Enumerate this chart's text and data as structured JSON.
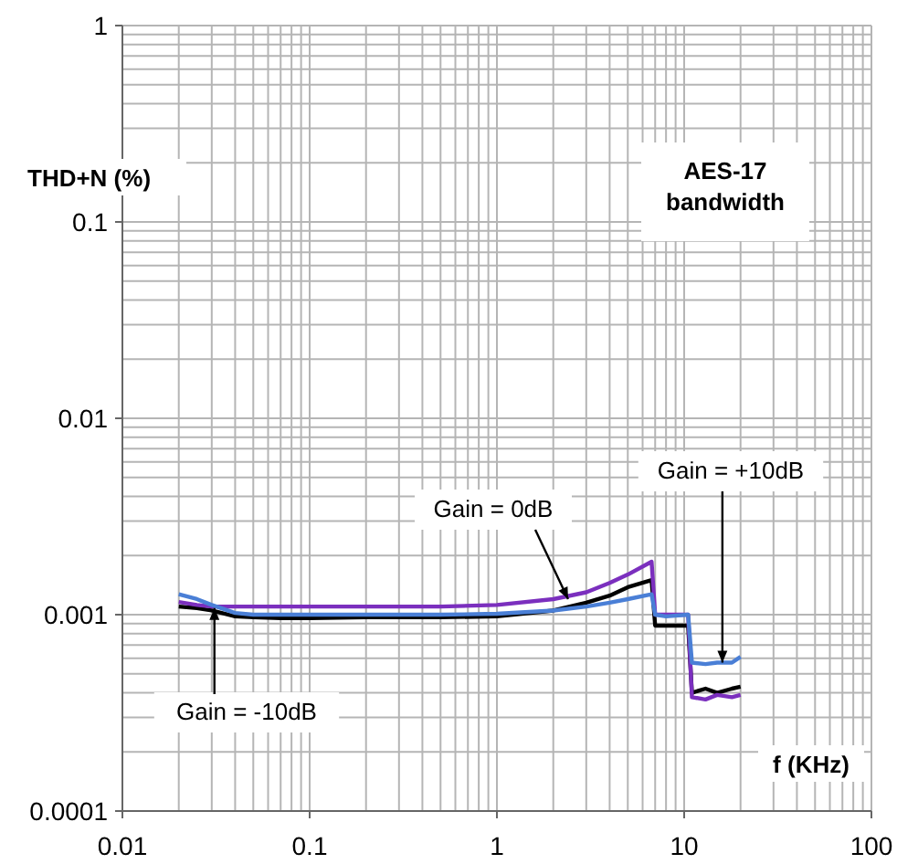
{
  "chart_data": {
    "type": "line",
    "xlabel": "f (KHz)",
    "ylabel": "THD+N (%)",
    "log": "xy",
    "grid": true,
    "marker": "none",
    "line_style": "solid",
    "xlim": [
      0.01,
      100
    ],
    "xticks": [
      0.01,
      0.1,
      1,
      10,
      100
    ],
    "ylim": [
      0.0001,
      1
    ],
    "yticks": [
      0.0001,
      0.001,
      0.01,
      0.1,
      1
    ],
    "series": [
      {
        "color": "#000000",
        "x": [
          0.02,
          0.025,
          0.03,
          0.04,
          0.05,
          0.07,
          0.1,
          0.2,
          0.5,
          1,
          2,
          3,
          4,
          5,
          6.7,
          7,
          8,
          10.5,
          11,
          13,
          15,
          18,
          20
        ],
        "values": [
          0.0011,
          0.00108,
          0.00105,
          0.00098,
          0.00097,
          0.00096,
          0.00096,
          0.00097,
          0.00097,
          0.00098,
          0.00105,
          0.00115,
          0.00125,
          0.00138,
          0.0015,
          0.00088,
          0.00088,
          0.00088,
          0.0004,
          0.00042,
          0.0004,
          0.00042,
          0.00043
        ]
      },
      {
        "color": "#7b2fbe",
        "x": [
          0.02,
          0.025,
          0.03,
          0.04,
          0.05,
          0.07,
          0.1,
          0.2,
          0.5,
          1,
          2,
          3,
          4,
          5,
          6.7,
          7,
          8,
          10.5,
          11,
          13,
          15,
          18,
          20
        ],
        "values": [
          0.00116,
          0.00112,
          0.0011,
          0.0011,
          0.0011,
          0.0011,
          0.0011,
          0.0011,
          0.0011,
          0.00112,
          0.0012,
          0.0013,
          0.00145,
          0.0016,
          0.00186,
          0.001,
          0.001,
          0.001,
          0.00038,
          0.00037,
          0.00039,
          0.00038,
          0.00039
        ]
      },
      {
        "color": "#4a7fd6",
        "x": [
          0.02,
          0.025,
          0.03,
          0.04,
          0.05,
          0.07,
          0.1,
          0.2,
          0.5,
          1,
          2,
          3,
          4,
          5,
          6.7,
          7,
          8,
          10.5,
          11,
          13,
          15,
          18,
          20
        ],
        "values": [
          0.00127,
          0.0012,
          0.00112,
          0.00102,
          0.001,
          0.001,
          0.001,
          0.001,
          0.001,
          0.00101,
          0.00105,
          0.0011,
          0.00115,
          0.0012,
          0.00127,
          0.001,
          0.00098,
          0.001,
          0.00057,
          0.00056,
          0.00057,
          0.00057,
          0.00061
        ]
      }
    ],
    "annotations": [
      "AES-17 bandwidth",
      {
        "text": "Gain = 0dB",
        "x": 2.4,
        "y": 0.0012
      },
      {
        "text": "Gain = +10dB",
        "x": 16,
        "y": 0.00057
      },
      {
        "text": "Gain = -10dB",
        "x": 0.031,
        "y": 0.00108
      }
    ]
  }
}
